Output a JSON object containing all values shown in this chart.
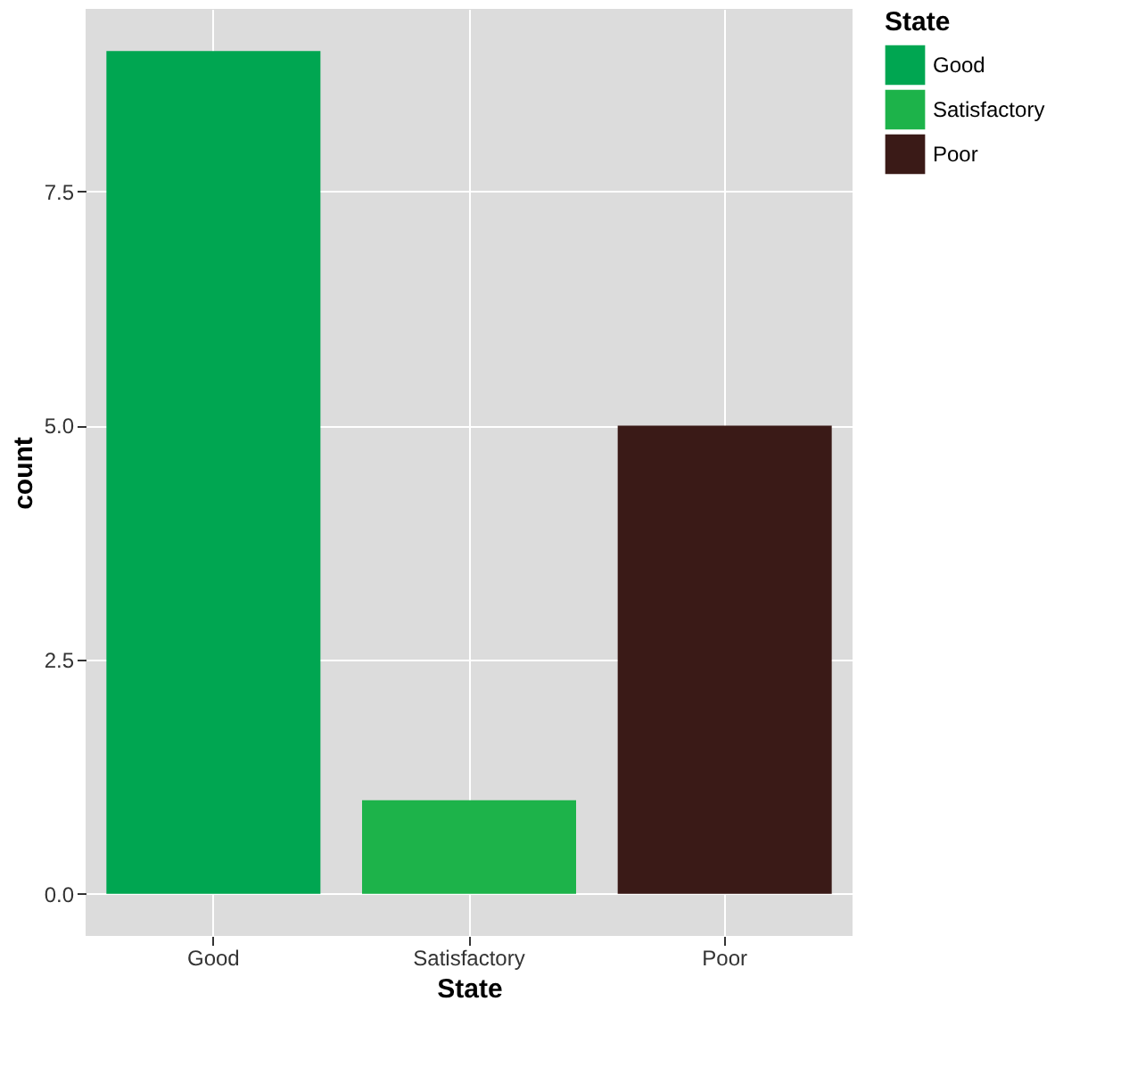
{
  "chart_data": {
    "type": "bar",
    "categories": [
      "Good",
      "Satisfactory",
      "Poor"
    ],
    "series": [
      {
        "name": "Good",
        "color": "#00a651",
        "values": [
          9,
          null,
          null
        ]
      },
      {
        "name": "Satisfactory",
        "color": "#1db34a",
        "values": [
          null,
          1,
          null
        ]
      },
      {
        "name": "Poor",
        "color": "#3a1a17",
        "values": [
          null,
          null,
          5
        ]
      }
    ],
    "xlabel": "State",
    "ylabel": "count",
    "legend_title": "State",
    "legend": "right",
    "ylim": [
      -0.45,
      9.45
    ],
    "yticks": [
      {
        "value": 0,
        "label": "0.0"
      },
      {
        "value": 2.5,
        "label": "2.5"
      },
      {
        "value": 5,
        "label": "5.0"
      },
      {
        "value": 7.5,
        "label": "7.5"
      }
    ],
    "grid": true
  }
}
